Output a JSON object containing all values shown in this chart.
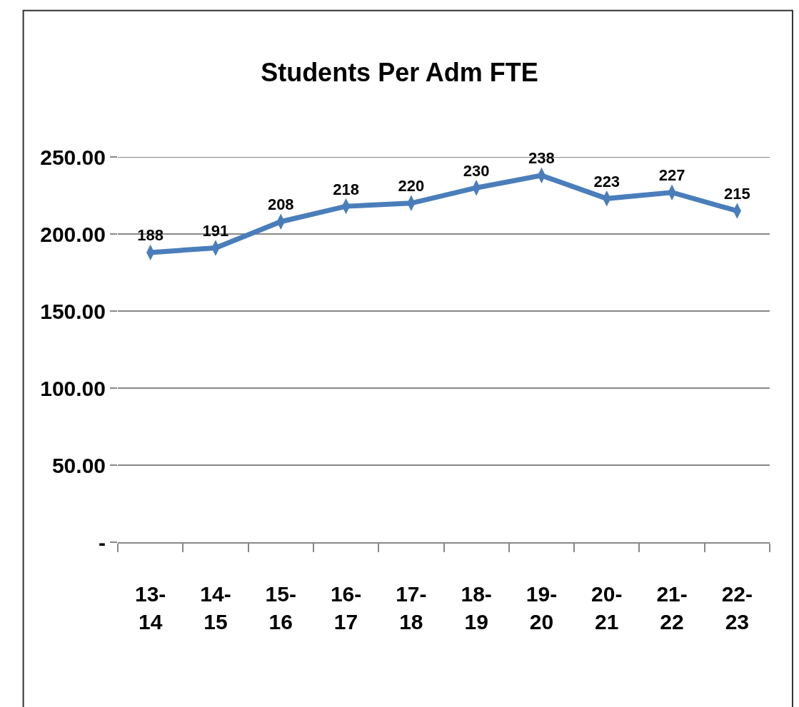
{
  "chart_data": {
    "type": "line",
    "title": "Students Per Adm FTE",
    "categories": [
      "13-14",
      "14-15",
      "15-16",
      "16-17",
      "17-18",
      "18-19",
      "19-20",
      "20-21",
      "21-22",
      "22-23"
    ],
    "series": [
      {
        "color": "#4a7ebb",
        "values": [
          188,
          191,
          208,
          218,
          220,
          230,
          238,
          223,
          227,
          215
        ]
      }
    ],
    "ylim": [
      0,
      250
    ],
    "yticks": [
      {
        "value": 0,
        "label": "-"
      },
      {
        "value": 50,
        "label": "50.00"
      },
      {
        "value": 100,
        "label": "100.00"
      },
      {
        "value": 150,
        "label": "150.00"
      },
      {
        "value": 200,
        "label": "200.00"
      },
      {
        "value": 250,
        "label": "250.00"
      }
    ],
    "grid": "y",
    "marker": "diamond",
    "line_style": "solid",
    "data_labels": true
  }
}
